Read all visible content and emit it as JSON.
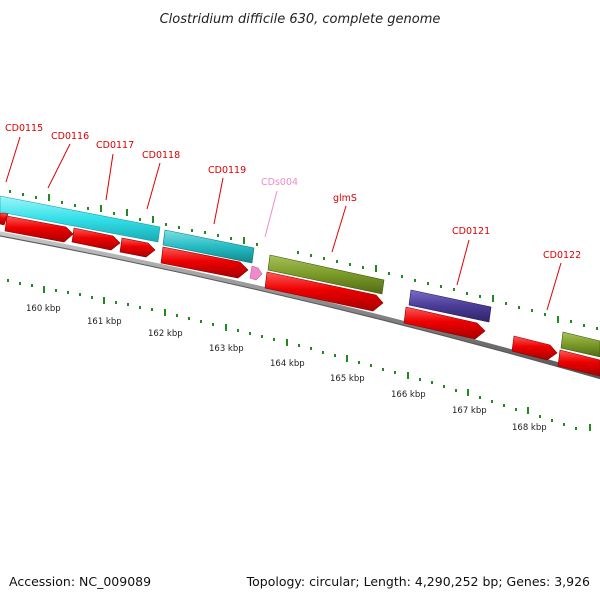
{
  "title": "Clostridium difficile 630, complete genome",
  "footer": {
    "accession": "Accession: NC_009089",
    "summary": "Topology: circular; Length: 4,290,252 bp; Genes: 3,926"
  },
  "colors": {
    "background": "#ffffff",
    "backbone": "#8a8a8a",
    "cds_reverse": "#e00000",
    "gene_cyan": "#33e0e8",
    "gene_teal": "#26bcc4",
    "gene_olive": "#7a9a28",
    "gene_navy": "#4a3c96",
    "gene_pink": "#f08ac8",
    "tick_green": "#1f8a1f",
    "label_red": "#dd0000"
  },
  "scale_labels": [
    "160 kbp",
    "161 kbp",
    "162 kbp",
    "163 kbp",
    "164 kbp",
    "165 kbp",
    "166 kbp",
    "167 kbp",
    "168 kbp"
  ],
  "gene_labels": [
    {
      "id": "cd0115",
      "text": "CD0115",
      "kind": "red"
    },
    {
      "id": "cd0116",
      "text": "CD0116",
      "kind": "red"
    },
    {
      "id": "cd0117",
      "text": "CD0117",
      "kind": "red"
    },
    {
      "id": "cd0118",
      "text": "CD0118",
      "kind": "red"
    },
    {
      "id": "cd0119",
      "text": "CD0119",
      "kind": "red"
    },
    {
      "id": "cds004",
      "text": "CDs004",
      "kind": "pink"
    },
    {
      "id": "glms",
      "text": "glmS",
      "kind": "red"
    },
    {
      "id": "cd0121",
      "text": "CD0121",
      "kind": "red"
    },
    {
      "id": "cd0122",
      "text": "CD0122",
      "kind": "red"
    }
  ]
}
